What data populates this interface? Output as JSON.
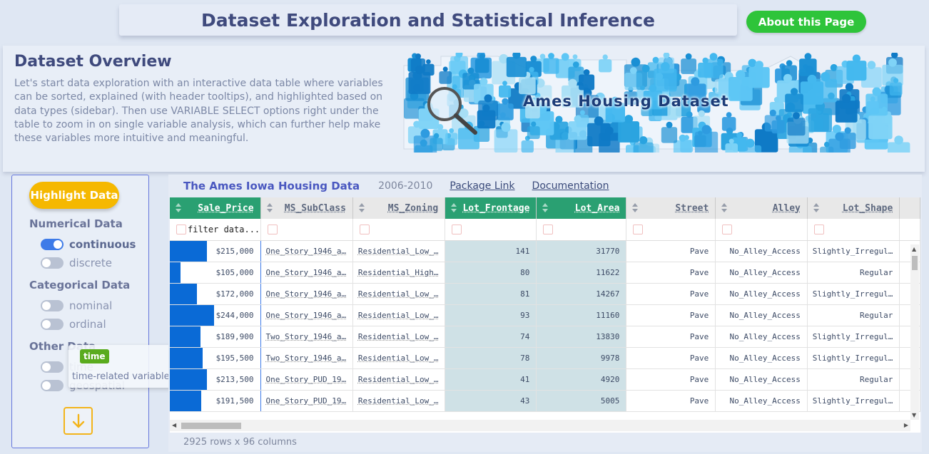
{
  "header": {
    "title": "Dataset Exploration and Statistical Inference",
    "about_label": "About this Page"
  },
  "overview": {
    "heading": "Dataset Overview",
    "description": "Let's start data exploration with an interactive data table where variables can be sorted, explained (with header tooltips), and highlighted based on data types (sidebar). Then use VARIABLE SELECT options right under the table to zoom in on single variable analysis, which can further help make these variables more intuitive and meaningful.",
    "banner_text": "Ames Housing Dataset"
  },
  "sidebar": {
    "highlight_label": "Highlight Data",
    "groups": [
      {
        "title": "Numerical Data",
        "items": [
          {
            "label": "continuous",
            "on": true
          },
          {
            "label": "discrete",
            "on": false
          }
        ]
      },
      {
        "title": "Categorical Data",
        "items": [
          {
            "label": "nominal",
            "on": false
          },
          {
            "label": "ordinal",
            "on": false
          }
        ]
      },
      {
        "title": "Other Data",
        "items": [
          {
            "label": "time",
            "on": false
          },
          {
            "label": "geospatial",
            "on": false
          }
        ]
      }
    ]
  },
  "tooltip": {
    "tag": "time",
    "text": "time-related variables (year, month)"
  },
  "table": {
    "caption_title": "The Ames Iowa Housing Data",
    "years": "2006-2010",
    "package_link": "Package Link",
    "documentation": "Documentation",
    "filter_placeholder": "filter data...",
    "columns": [
      "Sale_Price",
      "MS_SubClass",
      "MS_Zoning",
      "Lot_Frontage",
      "Lot_Area",
      "Street",
      "Alley",
      "Lot_Shape"
    ],
    "highlighted_columns": [
      "Sale_Price",
      "Lot_Frontage",
      "Lot_Area"
    ],
    "price_max": 400000,
    "rows": [
      [
        "$215,000",
        "One_Story_1946_a…",
        "Residential_Low_…",
        "141",
        "31770",
        "Pave",
        "No_Alley_Access",
        "Slightly_Irregul…"
      ],
      [
        "$105,000",
        "One_Story_1946_a…",
        "Residential_High…",
        "80",
        "11622",
        "Pave",
        "No_Alley_Access",
        "Regular"
      ],
      [
        "$172,000",
        "One_Story_1946_a…",
        "Residential_Low_…",
        "81",
        "14267",
        "Pave",
        "No_Alley_Access",
        "Slightly_Irregul…"
      ],
      [
        "$244,000",
        "One_Story_1946_a…",
        "Residential_Low_…",
        "93",
        "11160",
        "Pave",
        "No_Alley_Access",
        "Regular"
      ],
      [
        "$189,900",
        "Two_Story_1946_a…",
        "Residential_Low_…",
        "74",
        "13830",
        "Pave",
        "No_Alley_Access",
        "Slightly_Irregul…"
      ],
      [
        "$195,500",
        "Two_Story_1946_a…",
        "Residential_Low_…",
        "78",
        "9978",
        "Pave",
        "No_Alley_Access",
        "Slightly_Irregul…"
      ],
      [
        "$213,500",
        "One_Story_PUD_19…",
        "Residential_Low_…",
        "41",
        "4920",
        "Pave",
        "No_Alley_Access",
        "Regular"
      ],
      [
        "$191,500",
        "One_Story_PUD_19…",
        "Residential_Low_…",
        "43",
        "5005",
        "Pave",
        "No_Alley_Access",
        "Slightly_Irregul…"
      ]
    ],
    "footer": "2925 rows x 96 columns"
  }
}
